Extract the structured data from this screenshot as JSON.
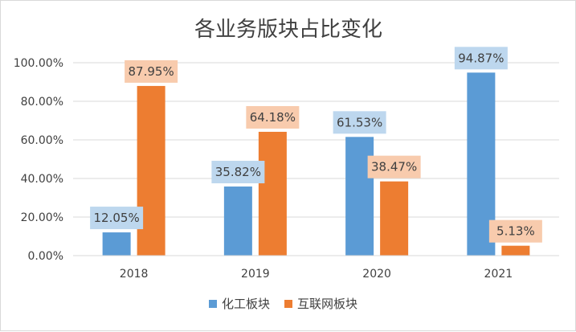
{
  "chart_data": {
    "type": "bar",
    "title": "各业务版块占比变化",
    "categories": [
      "2018",
      "2019",
      "2020",
      "2021"
    ],
    "series": [
      {
        "name": "化工板块",
        "color": "#5b9bd5",
        "label_bg": "#bdd7ee",
        "values": [
          12.05,
          35.82,
          61.53,
          94.87
        ],
        "labels": [
          "12.05%",
          "35.82%",
          "61.53%",
          "94.87%"
        ]
      },
      {
        "name": "互联网板块",
        "color": "#ed7d31",
        "label_bg": "#f8cbad",
        "values": [
          87.95,
          64.18,
          38.47,
          5.13
        ],
        "labels": [
          "87.95%",
          "64.18%",
          "38.47%",
          "5.13%"
        ]
      }
    ],
    "yticks": [
      "0.00%",
      "20.00%",
      "40.00%",
      "60.00%",
      "80.00%",
      "100.00%"
    ],
    "ylim": [
      0,
      100
    ],
    "grid": true,
    "legend_position": "bottom",
    "axis_color": "#d9d9d9",
    "grid_color": "#d9d9d9"
  }
}
